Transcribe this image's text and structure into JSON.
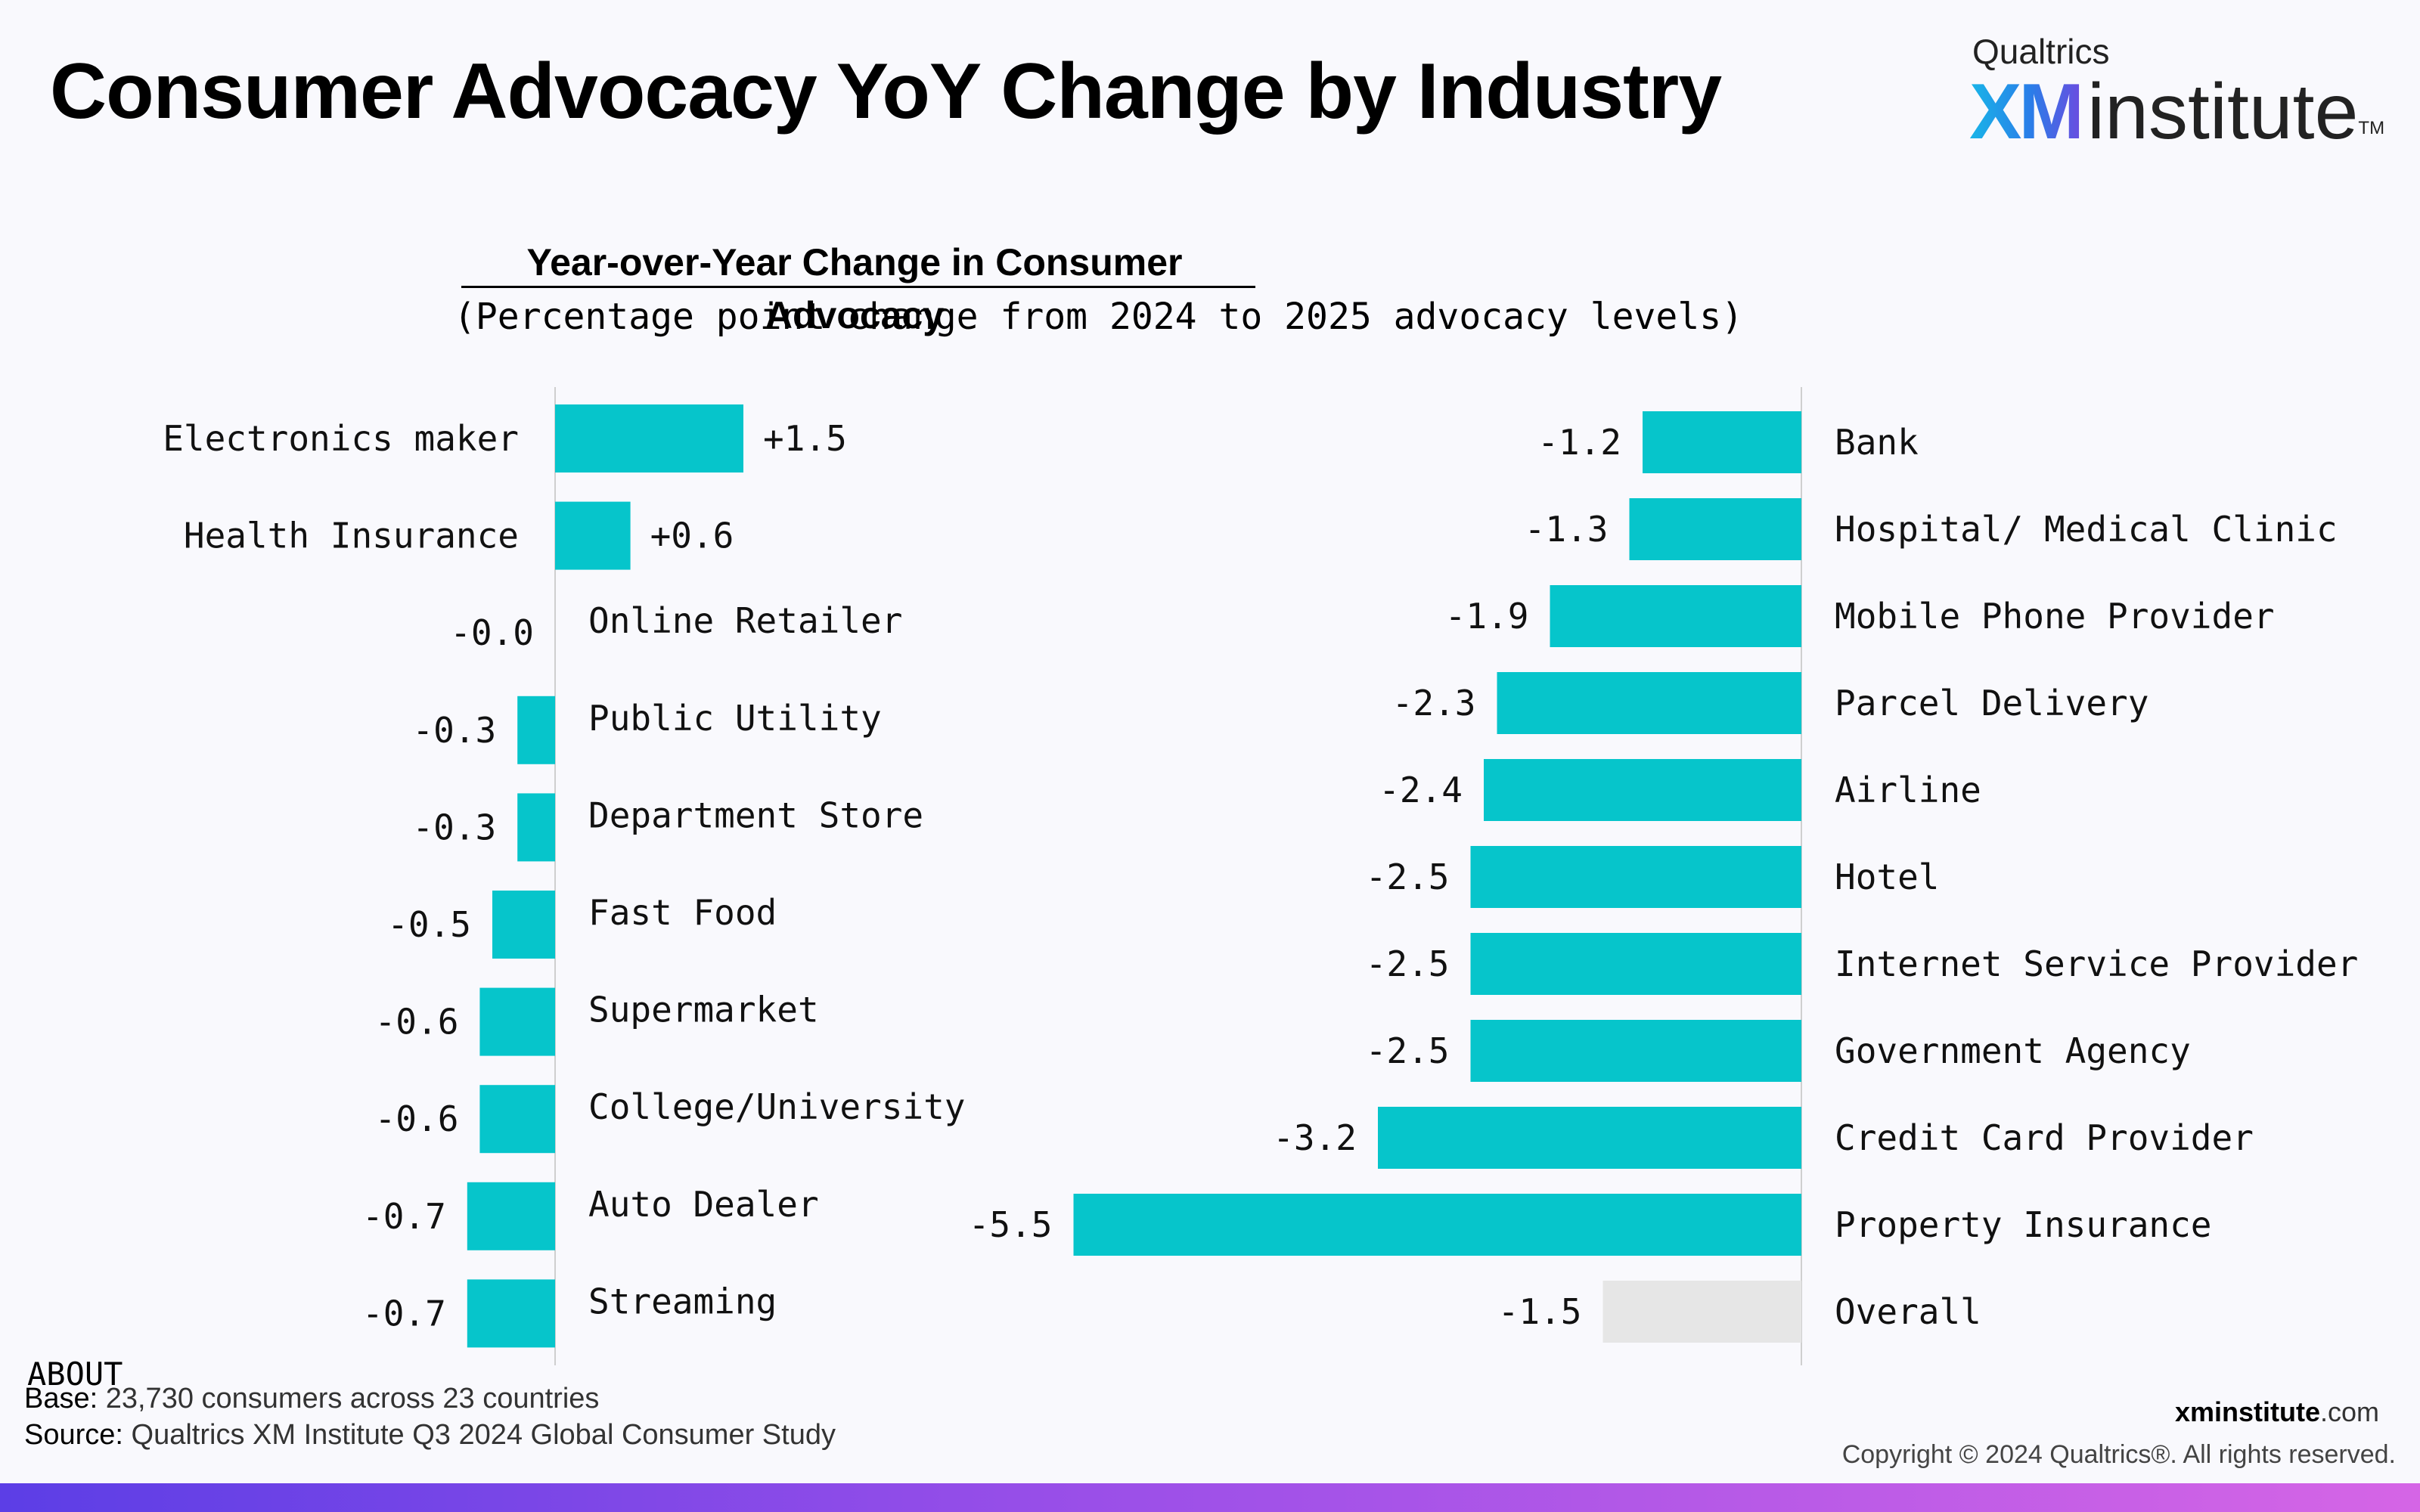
{
  "header": {
    "title": "Consumer Advocacy YoY Change by Industry",
    "logo": {
      "company": "Qualtrics",
      "xm": "XM",
      "institute": "institute",
      "tm": "TM"
    }
  },
  "chart_data": {
    "type": "bar",
    "orientation": "horizontal",
    "title": "Year-over-Year Change in Consumer Advocacy",
    "subtitle": "(Percentage point change from 2024 to 2025 advocacy levels)",
    "unit": "percentage points",
    "colors": {
      "bar": "#06c5cb",
      "overall": "#e6e6e6",
      "axis": "#cfcfcf"
    },
    "panels": [
      {
        "categories": [
          "Electronics maker",
          "Health Insurance",
          "Online Retailer",
          "Public Utility",
          "Department Store",
          "Fast Food",
          "Supermarket",
          "College/University",
          "Auto Dealer",
          "Streaming"
        ],
        "values": [
          1.5,
          0.6,
          -0.0,
          -0.3,
          -0.3,
          -0.5,
          -0.6,
          -0.6,
          -0.7,
          -0.7
        ],
        "labels": [
          "+1.5",
          "+0.6",
          "-0.0",
          "-0.3",
          "-0.3",
          "-0.5",
          "-0.6",
          "-0.6",
          "-0.7",
          "-0.7"
        ]
      },
      {
        "categories": [
          "Bank",
          "Hospital/ Medical Clinic",
          "Mobile Phone Provider",
          "Parcel Delivery",
          "Airline",
          "Hotel",
          "Internet Service Provider",
          "Government Agency",
          "Credit Card Provider",
          "Property Insurance",
          "Overall"
        ],
        "values": [
          -1.2,
          -1.3,
          -1.9,
          -2.3,
          -2.4,
          -2.5,
          -2.5,
          -2.5,
          -3.2,
          -5.5,
          -1.5
        ],
        "labels": [
          "-1.2",
          "-1.3",
          "-1.9",
          "-2.3",
          "-2.4",
          "-2.5",
          "-2.5",
          "-2.5",
          "-3.2",
          "-5.5",
          "-1.5"
        ],
        "highlight_category": "Overall"
      }
    ]
  },
  "footer": {
    "about_heading": "ABOUT",
    "base_label": "Base:",
    "base_text": "23,730 consumers across 23 countries",
    "source_label": "Source:",
    "source_text": "Qualtrics XM Institute Q3 2024 Global Consumer Study",
    "site_bold": "xminstitute",
    "site_rest": ".com",
    "copyright": "Copyright © 2024 Qualtrics®. All rights reserved."
  }
}
